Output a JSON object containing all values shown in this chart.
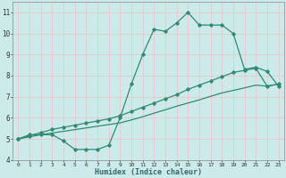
{
  "title": "",
  "xlabel": "Humidex (Indice chaleur)",
  "x_values": [
    0,
    1,
    2,
    3,
    4,
    5,
    6,
    7,
    8,
    9,
    10,
    11,
    12,
    13,
    14,
    15,
    16,
    17,
    18,
    19,
    20,
    21,
    22,
    23
  ],
  "line1_y": [
    5.0,
    5.2,
    5.2,
    5.2,
    4.9,
    4.5,
    4.5,
    4.5,
    4.7,
    6.0,
    7.6,
    9.0,
    10.2,
    10.1,
    10.5,
    11.0,
    10.4,
    10.4,
    10.4,
    10.0,
    8.3,
    8.4,
    8.2,
    7.5
  ],
  "line2_y": [
    5.0,
    5.15,
    5.3,
    5.45,
    5.55,
    5.65,
    5.75,
    5.85,
    5.95,
    6.1,
    6.3,
    6.5,
    6.7,
    6.9,
    7.1,
    7.35,
    7.55,
    7.75,
    7.95,
    8.15,
    8.25,
    8.35,
    7.5,
    7.6
  ],
  "line3_y": [
    5.0,
    5.1,
    5.2,
    5.28,
    5.36,
    5.44,
    5.52,
    5.6,
    5.68,
    5.76,
    5.9,
    6.05,
    6.22,
    6.38,
    6.55,
    6.7,
    6.85,
    7.02,
    7.18,
    7.3,
    7.42,
    7.55,
    7.5,
    7.6
  ],
  "line_color": "#2e8b74",
  "bg_color": "#cdeaea",
  "grid_color": "#e8c8c8",
  "ylim": [
    4.0,
    11.5
  ],
  "xlim": [
    -0.5,
    23.5
  ],
  "yticks": [
    4,
    5,
    6,
    7,
    8,
    9,
    10,
    11
  ],
  "xticks": [
    0,
    1,
    2,
    3,
    4,
    5,
    6,
    7,
    8,
    9,
    10,
    11,
    12,
    13,
    14,
    15,
    16,
    17,
    18,
    19,
    20,
    21,
    22,
    23
  ]
}
